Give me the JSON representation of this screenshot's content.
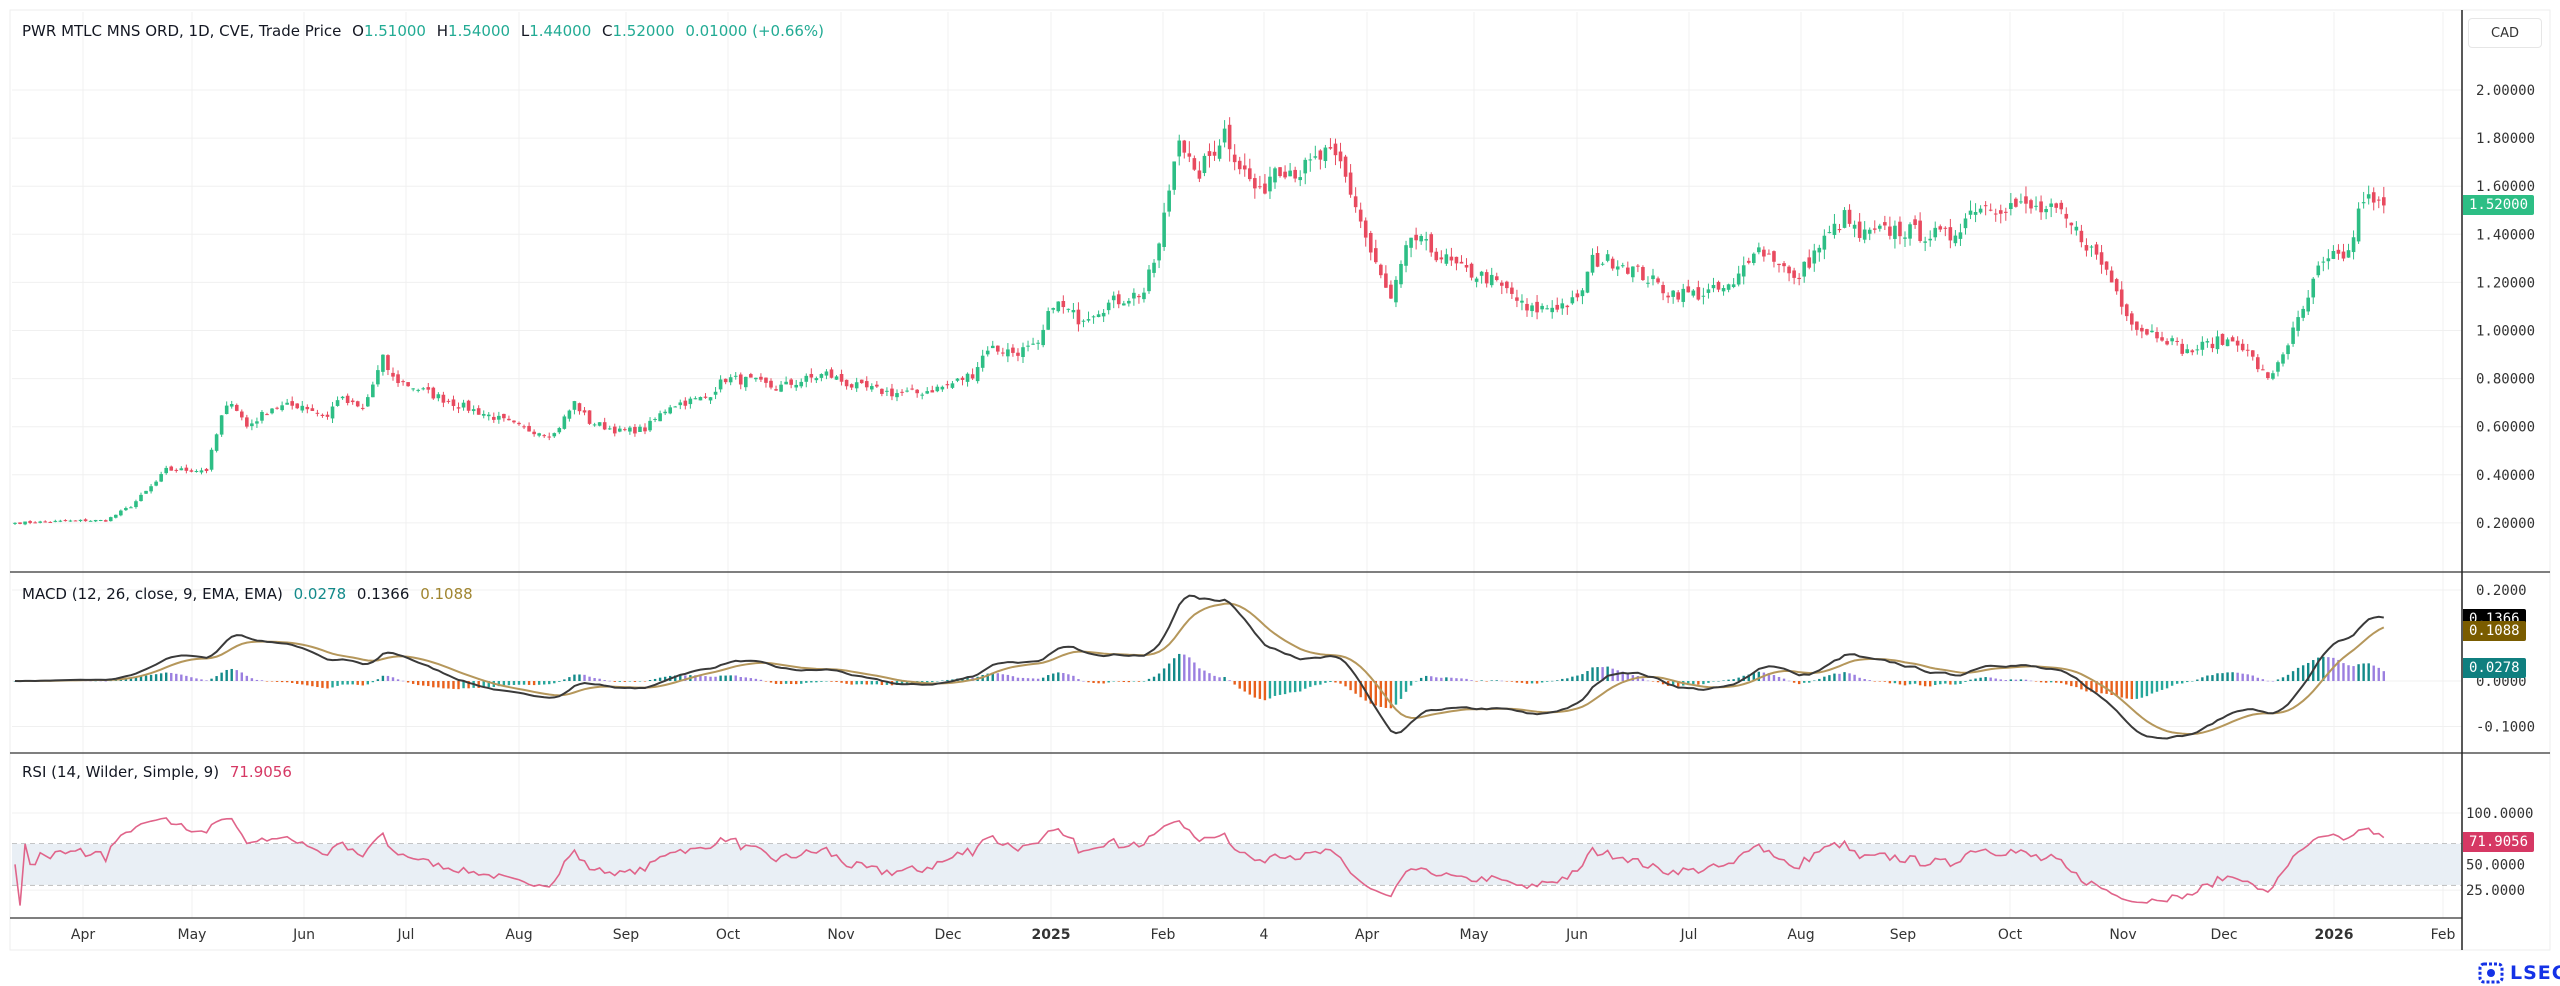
{
  "header": {
    "symbol": "PWR MTLC MNS ORD, 1D, CVE, Trade Price",
    "open_label": "O",
    "open": "1.51000",
    "high_label": "H",
    "high": "1.54000",
    "low_label": "L",
    "low": "1.44000",
    "close_label": "C",
    "close": "1.52000",
    "change": "0.01000 (+0.66%)"
  },
  "currency": "CAD",
  "price_tag": "1.52000",
  "macd": {
    "label": "MACD (12, 26, close, 9, EMA, EMA)",
    "histogram": "0.0278",
    "macd": "0.1366",
    "signal": "0.1088"
  },
  "rsi": {
    "label": "RSI (14, Wilder, Simple, 9)",
    "value": "71.9056"
  },
  "logo": "LSEG",
  "colors": {
    "up": "#2dbe85",
    "down": "#e84a5f",
    "macd_line": "#3a3a3a",
    "signal_line": "#b5975b",
    "rsi_line": "#e0648a",
    "rsi_band": "#e9eff5",
    "macd_tag": "#000000",
    "signal_tag": "#7a5c00",
    "hist_tag": "#0f7f7f",
    "rsi_tag": "#d63864",
    "price_tag": "#2dbe85"
  },
  "chart_data": {
    "type": "candlestick",
    "title": "PWR MTLC MNS ORD, 1D, CVE",
    "bars": 471,
    "close_keypoints": [
      [
        0,
        0.2
      ],
      [
        14,
        0.21
      ],
      [
        18,
        0.21
      ],
      [
        23,
        0.27
      ],
      [
        28,
        0.37
      ],
      [
        30,
        0.42
      ],
      [
        38,
        0.42
      ],
      [
        41,
        0.64
      ],
      [
        43,
        0.71
      ],
      [
        46,
        0.6
      ],
      [
        51,
        0.68
      ],
      [
        57,
        0.69
      ],
      [
        62,
        0.64
      ],
      [
        64,
        0.72
      ],
      [
        69,
        0.67
      ],
      [
        73,
        0.88
      ],
      [
        75,
        0.8
      ],
      [
        82,
        0.74
      ],
      [
        88,
        0.69
      ],
      [
        95,
        0.64
      ],
      [
        101,
        0.59
      ],
      [
        107,
        0.57
      ],
      [
        111,
        0.7
      ],
      [
        114,
        0.62
      ],
      [
        120,
        0.58
      ],
      [
        125,
        0.59
      ],
      [
        130,
        0.69
      ],
      [
        137,
        0.72
      ],
      [
        141,
        0.8
      ],
      [
        146,
        0.79
      ],
      [
        151,
        0.76
      ],
      [
        156,
        0.79
      ],
      [
        161,
        0.82
      ],
      [
        166,
        0.77
      ],
      [
        174,
        0.74
      ],
      [
        179,
        0.74
      ],
      [
        185,
        0.77
      ],
      [
        190,
        0.82
      ],
      [
        193,
        0.93
      ],
      [
        198,
        0.91
      ],
      [
        203,
        0.93
      ],
      [
        206,
        1.12
      ],
      [
        211,
        1.05
      ],
      [
        218,
        1.12
      ],
      [
        224,
        1.16
      ],
      [
        227,
        1.35
      ],
      [
        231,
        1.83
      ],
      [
        234,
        1.63
      ],
      [
        236,
        1.69
      ],
      [
        240,
        1.83
      ],
      [
        243,
        1.69
      ],
      [
        247,
        1.56
      ],
      [
        250,
        1.69
      ],
      [
        255,
        1.66
      ],
      [
        260,
        1.73
      ],
      [
        263,
        1.69
      ],
      [
        266,
        1.52
      ],
      [
        269,
        1.32
      ],
      [
        273,
        1.12
      ],
      [
        277,
        1.39
      ],
      [
        282,
        1.32
      ],
      [
        287,
        1.25
      ],
      [
        292,
        1.22
      ],
      [
        297,
        1.15
      ],
      [
        300,
        1.08
      ],
      [
        305,
        1.1
      ],
      [
        310,
        1.12
      ],
      [
        313,
        1.29
      ],
      [
        318,
        1.29
      ],
      [
        323,
        1.23
      ],
      [
        328,
        1.16
      ],
      [
        334,
        1.15
      ],
      [
        341,
        1.18
      ],
      [
        345,
        1.35
      ],
      [
        350,
        1.29
      ],
      [
        353,
        1.2
      ],
      [
        358,
        1.35
      ],
      [
        363,
        1.47
      ],
      [
        366,
        1.39
      ],
      [
        373,
        1.42
      ],
      [
        379,
        1.4
      ],
      [
        384,
        1.39
      ],
      [
        389,
        1.52
      ],
      [
        396,
        1.52
      ],
      [
        405,
        1.49
      ],
      [
        410,
        1.39
      ],
      [
        415,
        1.25
      ],
      [
        418,
        1.12
      ],
      [
        421,
        1.01
      ],
      [
        426,
        0.98
      ],
      [
        431,
        0.91
      ],
      [
        436,
        0.95
      ],
      [
        441,
        0.96
      ],
      [
        444,
        0.88
      ],
      [
        447,
        0.79
      ],
      [
        451,
        0.95
      ],
      [
        454,
        1.08
      ],
      [
        457,
        1.25
      ],
      [
        460,
        1.3
      ],
      [
        463,
        1.32
      ],
      [
        466,
        1.56
      ],
      [
        468,
        1.52
      ],
      [
        470,
        1.52
      ]
    ],
    "price_axis": {
      "ticks": [
        "2.00000",
        "1.80000",
        "1.60000",
        "1.40000",
        "1.20000",
        "1.00000",
        "0.80000",
        "0.60000",
        "0.40000",
        "0.20000"
      ],
      "ylim": [
        0.05,
        2.1
      ]
    },
    "macd_axis": {
      "ticks": [
        "0.2000",
        "0.0000",
        "-0.1000"
      ],
      "ylim": [
        -0.15,
        0.2
      ]
    },
    "rsi_axis": {
      "ticks": [
        "100.0000",
        "50.0000",
        "25.0000"
      ],
      "band": [
        30,
        70
      ],
      "ylim": [
        10,
        100
      ]
    },
    "x_ticks": [
      "Apr",
      "May",
      "Jun",
      "Jul",
      "Aug",
      "Sep",
      "Oct",
      "Nov",
      "Dec",
      "2025",
      "Feb",
      "4",
      "Apr",
      "May",
      "Jun",
      "Jul",
      "Aug",
      "Sep",
      "Oct",
      "Nov",
      "Dec",
      "2026",
      "Feb"
    ]
  }
}
